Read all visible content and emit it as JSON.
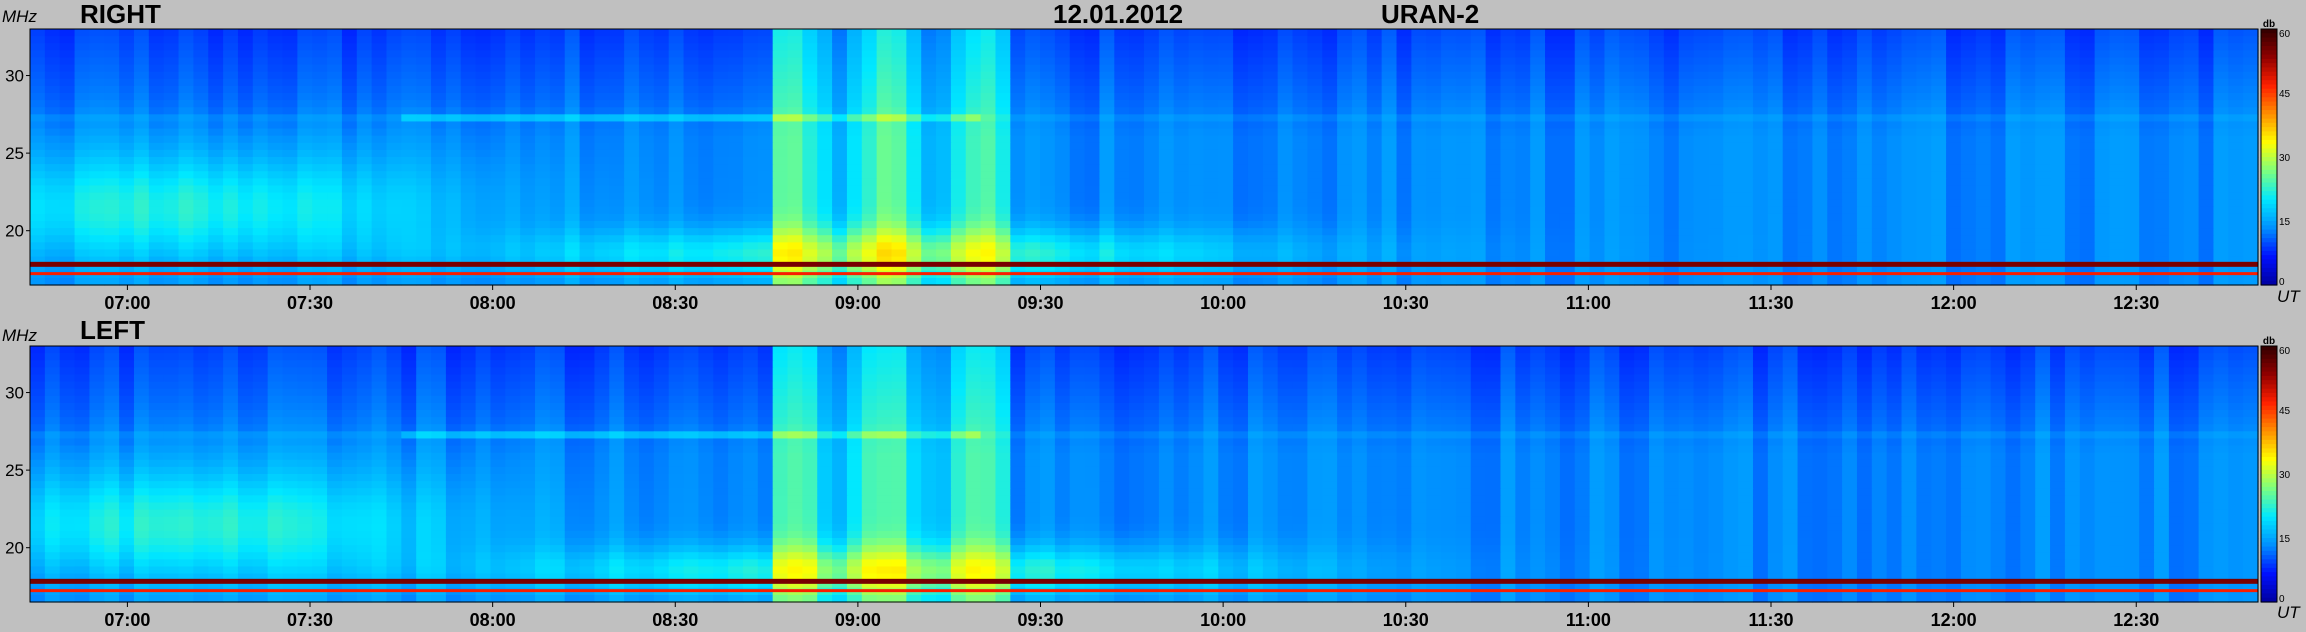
{
  "header": {
    "date": "12.01.2012",
    "instrument": "URAN-2"
  },
  "axis_labels": {
    "y_unit": "MHz",
    "x_unit": "UT",
    "colorbar_unit": "db"
  },
  "colors": {
    "background": "#c0c0c0",
    "colormap": [
      "#0000a0",
      "#0010ff",
      "#0090ff",
      "#00e8ff",
      "#7cff80",
      "#ffff00",
      "#ff9000",
      "#ff2000",
      "#900000",
      "#300000"
    ]
  },
  "chart_data": [
    {
      "type": "heatmap",
      "title": "RIGHT",
      "xlabel": "UT",
      "ylabel": "MHz",
      "x_ticks": [
        "07:00",
        "07:30",
        "08:00",
        "08:30",
        "09:00",
        "09:30",
        "10:00",
        "10:30",
        "11:00",
        "11:30",
        "12:00",
        "12:30"
      ],
      "y_ticks": [
        "30",
        "25",
        "20"
      ],
      "ylim": [
        16.5,
        33
      ],
      "colorbar": {
        "label": "db",
        "ticks": [
          "60",
          "45",
          "30",
          "15",
          "0"
        ],
        "range": [
          0,
          60
        ]
      },
      "features": {
        "background_db": 13,
        "persistent_lines_MHz": [
          17.8,
          17.2
        ],
        "strong_line_db": 55,
        "burst_start_UT": "08:45",
        "burst_end_UT": "09:25"
      }
    },
    {
      "type": "heatmap",
      "title": "LEFT",
      "xlabel": "UT",
      "ylabel": "MHz",
      "x_ticks": [
        "07:00",
        "07:30",
        "08:00",
        "08:30",
        "09:00",
        "09:30",
        "10:00",
        "10:30",
        "11:00",
        "11:30",
        "12:00",
        "12:30"
      ],
      "y_ticks": [
        "30",
        "25",
        "20"
      ],
      "ylim": [
        16.5,
        33
      ],
      "colorbar": {
        "label": "db",
        "ticks": [
          "60",
          "45",
          "30",
          "15",
          "0"
        ],
        "range": [
          0,
          60
        ]
      },
      "features": {
        "background_db": 13,
        "persistent_lines_MHz": [
          17.8,
          17.2
        ],
        "strong_line_db": 55,
        "burst_start_UT": "08:45",
        "burst_end_UT": "09:25"
      }
    }
  ]
}
